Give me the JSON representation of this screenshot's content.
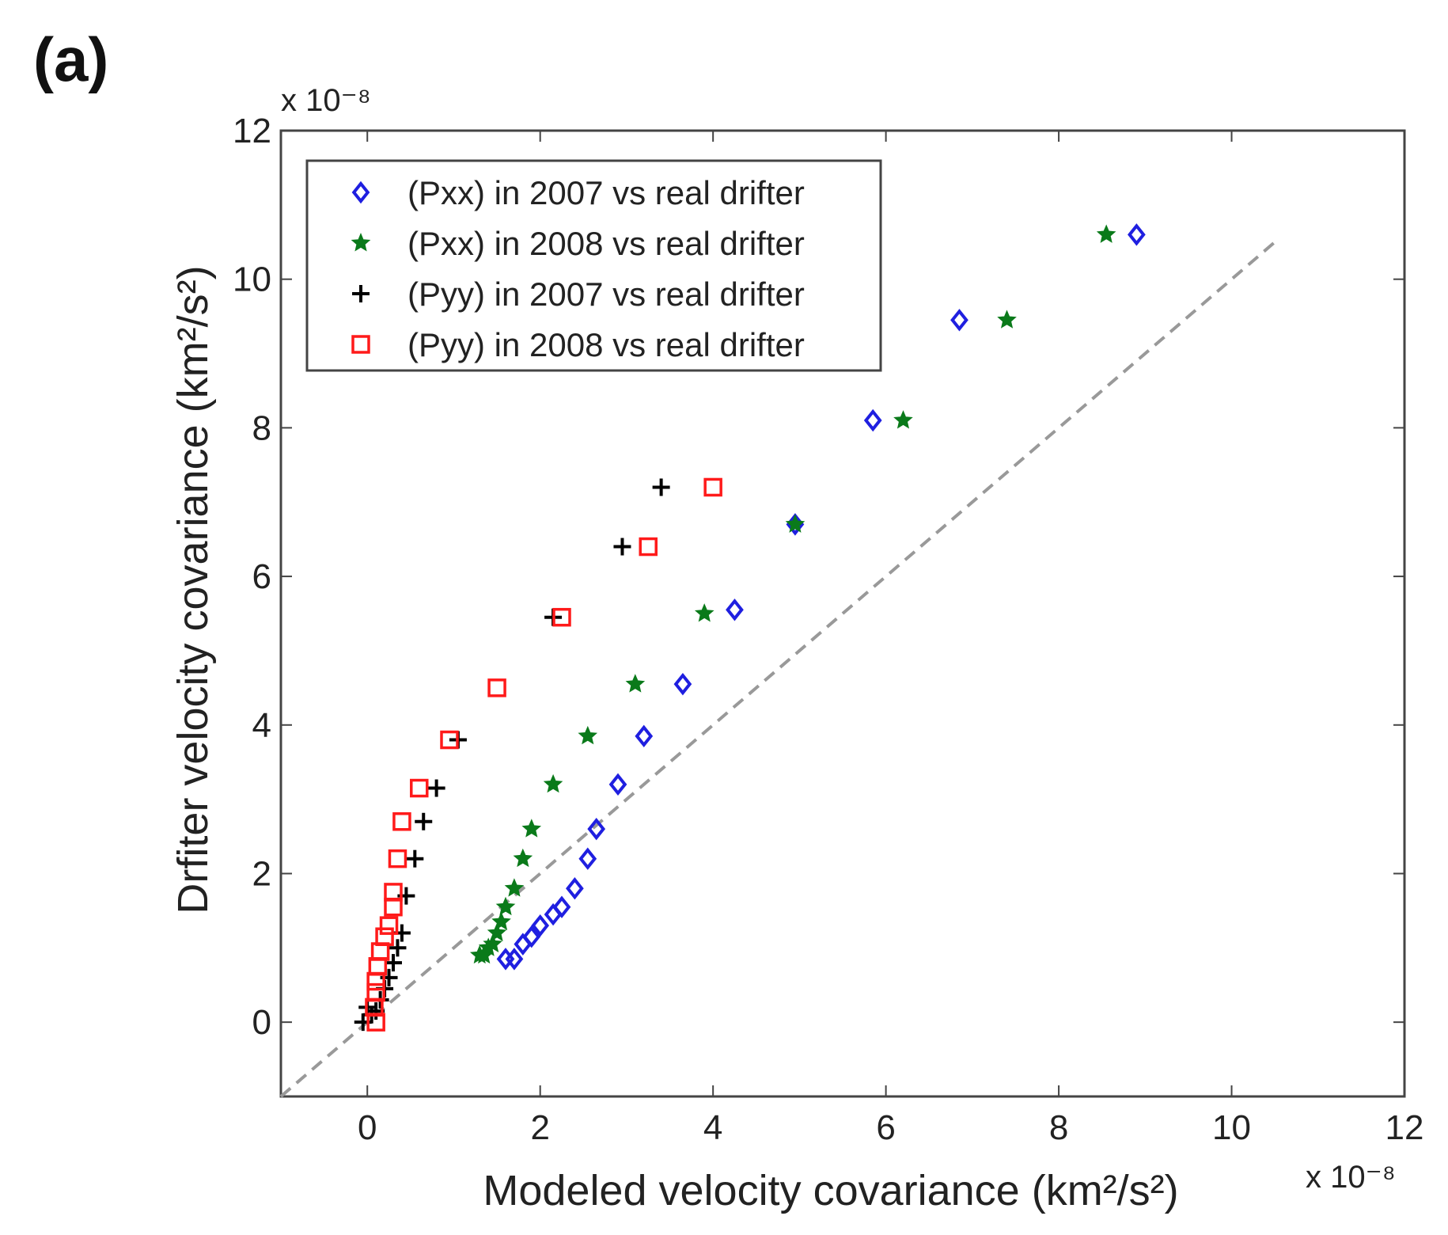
{
  "panel_label": "(a)",
  "chart_data": {
    "type": "scatter",
    "title": "",
    "xlabel": "Modeled velocity covariance (km²/s²)",
    "ylabel": "Drfiter velocity covariance (km²/s²)",
    "xlim": [
      -1,
      12
    ],
    "ylim": [
      -1,
      12
    ],
    "xticks": [
      0,
      2,
      4,
      6,
      8,
      10,
      12
    ],
    "yticks": [
      0,
      2,
      4,
      6,
      8,
      10,
      12
    ],
    "x_scale_label": "x 10⁻⁸",
    "y_scale_label": "x 10⁻⁸",
    "legend_position": "top-left",
    "reference_line": {
      "name": "1:1 line",
      "from": [
        -1,
        -1
      ],
      "to": [
        10.5,
        10.5
      ],
      "style": "dashed",
      "color": "#999999"
    },
    "series": [
      {
        "name": "(Pxx) in 2007 vs real drifter",
        "marker": "diamond",
        "color": "#1f1fe0",
        "x": [
          8.9,
          6.85,
          5.85,
          4.95,
          4.25,
          3.65,
          3.2,
          2.9,
          2.65,
          2.55,
          2.4,
          2.25,
          2.15,
          2.0,
          1.9,
          1.8,
          1.7,
          1.6
        ],
        "y": [
          10.6,
          9.45,
          8.1,
          6.7,
          5.55,
          4.55,
          3.85,
          3.2,
          2.6,
          2.2,
          1.8,
          1.55,
          1.45,
          1.3,
          1.15,
          1.05,
          0.85,
          0.85
        ]
      },
      {
        "name": "(Pxx) in 2008 vs real drifter",
        "marker": "star",
        "color": "#0a7a1a",
        "x": [
          8.55,
          7.4,
          6.2,
          4.95,
          3.9,
          3.1,
          2.55,
          2.15,
          1.9,
          1.8,
          1.7,
          1.6,
          1.55,
          1.5,
          1.45,
          1.4,
          1.35,
          1.3
        ],
        "y": [
          10.6,
          9.45,
          8.1,
          6.7,
          5.5,
          4.55,
          3.85,
          3.2,
          2.6,
          2.2,
          1.8,
          1.55,
          1.35,
          1.2,
          1.05,
          1.0,
          0.9,
          0.9
        ]
      },
      {
        "name": "(Pyy) in 2007 vs real drifter",
        "marker": "plus",
        "color": "#000000",
        "x": [
          3.4,
          2.95,
          2.15,
          1.05,
          0.8,
          0.65,
          0.55,
          0.45,
          0.4,
          0.35,
          0.3,
          0.25,
          0.2,
          0.15,
          0.1,
          0.05,
          0.0,
          -0.05
        ],
        "y": [
          7.2,
          6.4,
          5.45,
          3.8,
          3.15,
          2.7,
          2.2,
          1.7,
          1.2,
          1.0,
          0.8,
          0.6,
          0.45,
          0.3,
          0.15,
          0.1,
          0.2,
          0.0
        ]
      },
      {
        "name": "(Pyy) in 2008 vs real drifter",
        "marker": "square",
        "color": "#ff1a1a",
        "x": [
          4.0,
          3.25,
          2.25,
          1.5,
          0.95,
          0.6,
          0.4,
          0.35,
          0.3,
          0.3,
          0.25,
          0.2,
          0.15,
          0.12,
          0.1,
          0.1,
          0.08,
          0.1
        ],
        "y": [
          7.2,
          6.4,
          5.45,
          4.5,
          3.8,
          3.15,
          2.7,
          2.2,
          1.75,
          1.55,
          1.3,
          1.15,
          0.95,
          0.75,
          0.55,
          0.4,
          0.2,
          0.0
        ]
      }
    ]
  }
}
